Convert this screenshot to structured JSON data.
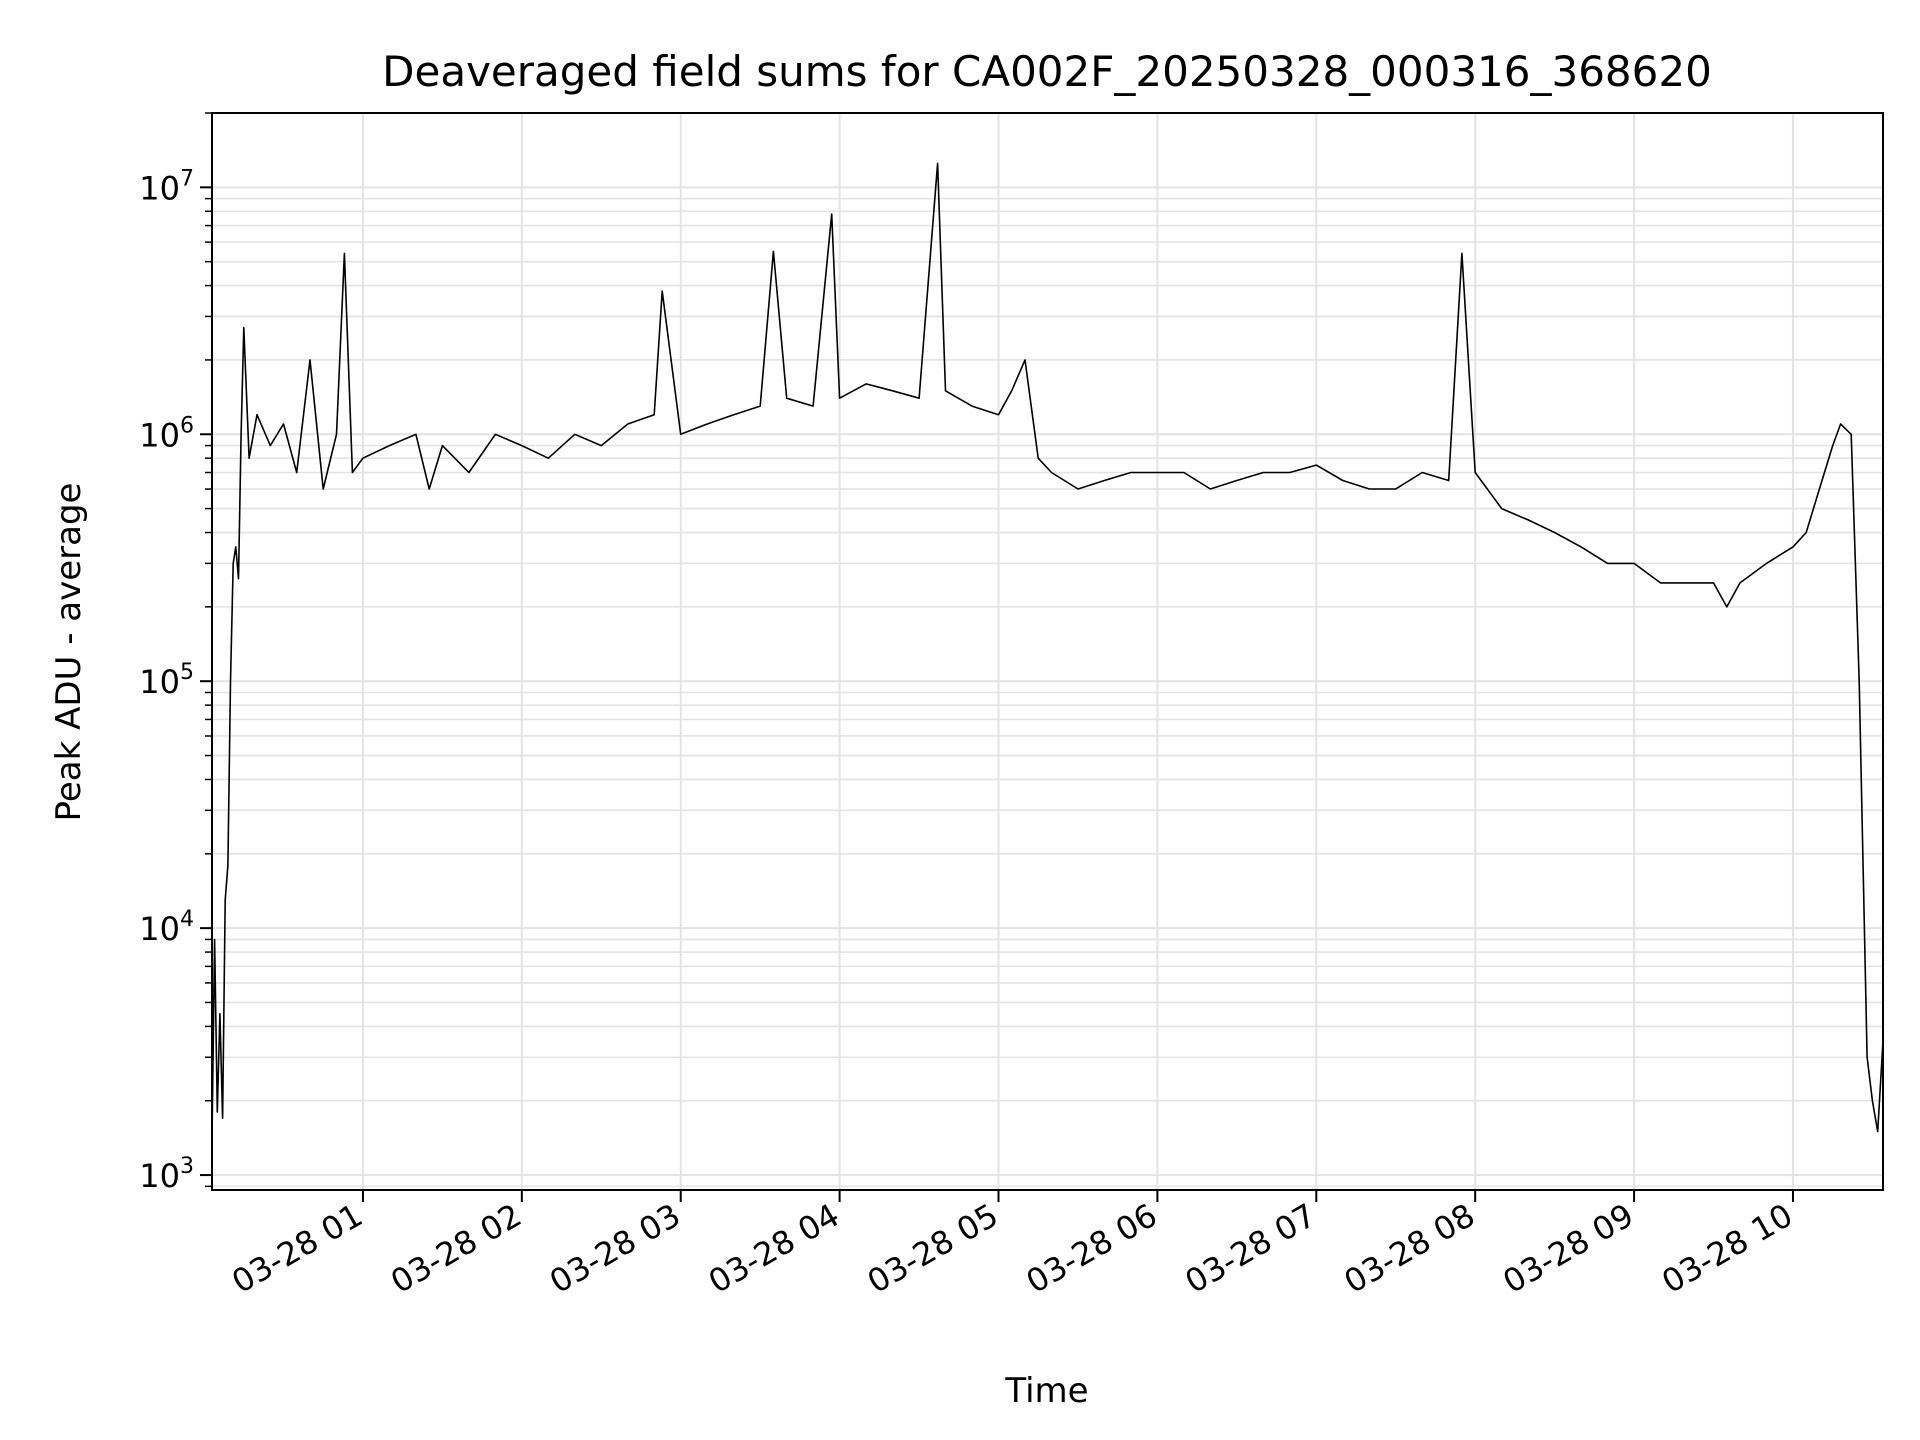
{
  "chart_data": {
    "type": "line",
    "title": "Deaveraged field sums for CA002F_20250328_000316_368620",
    "xlabel": "Time",
    "ylabel": "Peak ADU - average",
    "yscale": "log",
    "ylim": [
      870,
      20000000
    ],
    "xlim": [
      "03-28 00:03",
      "03-28 10:34"
    ],
    "grid": true,
    "line_color": "#000000",
    "x_ticks": [
      {
        "value": "03-28 01:00",
        "label": "03-28 01"
      },
      {
        "value": "03-28 02:00",
        "label": "03-28 02"
      },
      {
        "value": "03-28 03:00",
        "label": "03-28 03"
      },
      {
        "value": "03-28 04:00",
        "label": "03-28 04"
      },
      {
        "value": "03-28 05:00",
        "label": "03-28 05"
      },
      {
        "value": "03-28 06:00",
        "label": "03-28 06"
      },
      {
        "value": "03-28 07:00",
        "label": "03-28 07"
      },
      {
        "value": "03-28 08:00",
        "label": "03-28 08"
      },
      {
        "value": "03-28 09:00",
        "label": "03-28 09"
      },
      {
        "value": "03-28 10:00",
        "label": "03-28 10"
      }
    ],
    "y_ticks": [
      {
        "value": 1000,
        "base": "10",
        "exp": "3"
      },
      {
        "value": 10000,
        "base": "10",
        "exp": "4"
      },
      {
        "value": 100000,
        "base": "10",
        "exp": "5"
      },
      {
        "value": 1000000,
        "base": "10",
        "exp": "6"
      },
      {
        "value": 10000000,
        "base": "10",
        "exp": "7"
      }
    ],
    "series": [
      {
        "x": [
          "03-28 00:03",
          "03-28 00:04",
          "03-28 00:05",
          "03-28 00:06",
          "03-28 00:07",
          "03-28 00:08",
          "03-28 00:09",
          "03-28 00:10",
          "03-28 00:11",
          "03-28 00:12",
          "03-28 00:13",
          "03-28 00:14",
          "03-28 00:15",
          "03-28 00:17",
          "03-28 00:20",
          "03-28 00:25",
          "03-28 00:30",
          "03-28 00:35",
          "03-28 00:40",
          "03-28 00:45",
          "03-28 00:50",
          "03-28 00:53",
          "03-28 00:56",
          "03-28 01:00",
          "03-28 01:10",
          "03-28 01:20",
          "03-28 01:25",
          "03-28 01:30",
          "03-28 01:40",
          "03-28 01:50",
          "03-28 02:00",
          "03-28 02:10",
          "03-28 02:20",
          "03-28 02:30",
          "03-28 02:40",
          "03-28 02:50",
          "03-28 02:53",
          "03-28 03:00",
          "03-28 03:10",
          "03-28 03:20",
          "03-28 03:30",
          "03-28 03:35",
          "03-28 03:40",
          "03-28 03:50",
          "03-28 03:57",
          "03-28 04:00",
          "03-28 04:10",
          "03-28 04:20",
          "03-28 04:30",
          "03-28 04:37",
          "03-28 04:40",
          "03-28 04:50",
          "03-28 05:00",
          "03-28 05:05",
          "03-28 05:10",
          "03-28 05:15",
          "03-28 05:20",
          "03-28 05:30",
          "03-28 05:40",
          "03-28 05:50",
          "03-28 06:00",
          "03-28 06:10",
          "03-28 06:20",
          "03-28 06:30",
          "03-28 06:40",
          "03-28 06:50",
          "03-28 07:00",
          "03-28 07:10",
          "03-28 07:20",
          "03-28 07:30",
          "03-28 07:40",
          "03-28 07:50",
          "03-28 07:55",
          "03-28 08:00",
          "03-28 08:10",
          "03-28 08:20",
          "03-28 08:30",
          "03-28 08:40",
          "03-28 08:50",
          "03-28 09:00",
          "03-28 09:10",
          "03-28 09:20",
          "03-28 09:30",
          "03-28 09:35",
          "03-28 09:40",
          "03-28 09:50",
          "03-28 10:00",
          "03-28 10:05",
          "03-28 10:10",
          "03-28 10:15",
          "03-28 10:18",
          "03-28 10:22",
          "03-28 10:25",
          "03-28 10:28",
          "03-28 10:30",
          "03-28 10:32",
          "03-28 10:34"
        ],
        "y": [
          1400,
          9000,
          1800,
          4500,
          1700,
          13000,
          18000,
          100000,
          300000,
          350000,
          260000,
          1000000,
          2700000,
          800000,
          1200000,
          900000,
          1100000,
          700000,
          2000000,
          600000,
          1000000,
          5400000,
          700000,
          800000,
          900000,
          1000000,
          600000,
          900000,
          700000,
          1000000,
          900000,
          800000,
          1000000,
          900000,
          1100000,
          1200000,
          3800000,
          1000000,
          1100000,
          1200000,
          1300000,
          5500000,
          1400000,
          1300000,
          7800000,
          1400000,
          1600000,
          1500000,
          1400000,
          12500000,
          1500000,
          1300000,
          1200000,
          1500000,
          2000000,
          800000,
          700000,
          600000,
          650000,
          700000,
          700000,
          700000,
          600000,
          650000,
          700000,
          700000,
          750000,
          650000,
          600000,
          600000,
          700000,
          650000,
          5400000,
          700000,
          500000,
          450000,
          400000,
          350000,
          300000,
          300000,
          250000,
          250000,
          250000,
          200000,
          250000,
          300000,
          350000,
          400000,
          600000,
          900000,
          1100000,
          1000000,
          100000,
          3000,
          2000,
          1500,
          3500
        ]
      }
    ]
  }
}
